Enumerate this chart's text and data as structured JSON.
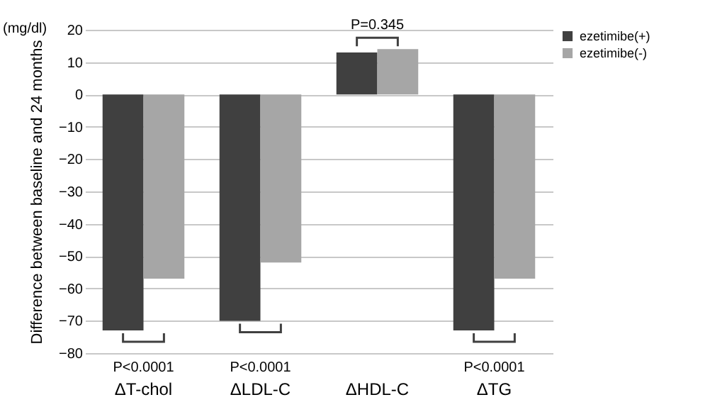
{
  "chart_data": {
    "type": "bar",
    "ylabel": "Difference between baseline and 24 months",
    "categories": [
      "ΔT-chol",
      "ΔLDL-C",
      "ΔHDL-C",
      "ΔTG"
    ],
    "series": [
      {
        "name": "ezetimibe(+)",
        "color": "#404040",
        "values": [
          -73,
          -70,
          13,
          -73
        ]
      },
      {
        "name": "ezetimibe(-)",
        "color": "#a6a6a6",
        "values": [
          -57,
          -52,
          14,
          -57
        ]
      }
    ],
    "ylim": [
      -80,
      20
    ],
    "yticks": [
      -80,
      -70,
      -60,
      -50,
      -40,
      -30,
      -20,
      -10,
      0,
      10,
      20
    ],
    "grid": "y",
    "legend": "right",
    "annotations": [
      "(mg/dl)",
      "P<0.0001",
      "P<0.0001",
      "P=0.345",
      "P<0.0001"
    ]
  }
}
